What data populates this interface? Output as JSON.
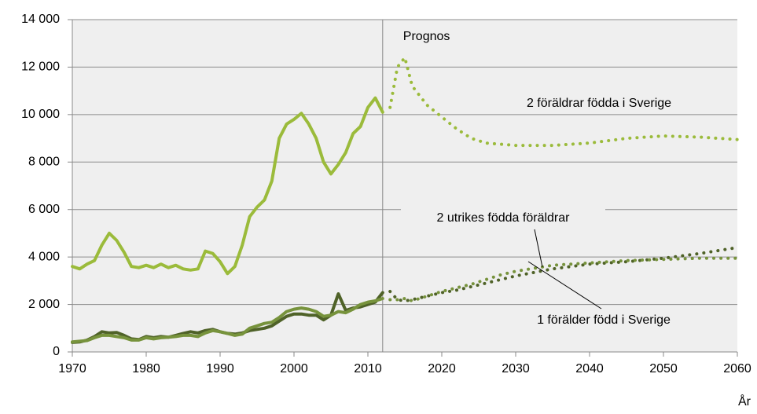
{
  "chart_data": {
    "type": "line",
    "x": [
      1970,
      1971,
      1972,
      1973,
      1974,
      1975,
      1976,
      1977,
      1978,
      1979,
      1980,
      1981,
      1982,
      1983,
      1984,
      1985,
      1986,
      1987,
      1988,
      1989,
      1990,
      1991,
      1992,
      1993,
      1994,
      1995,
      1996,
      1997,
      1998,
      1999,
      2000,
      2001,
      2002,
      2003,
      2004,
      2005,
      2006,
      2007,
      2008,
      2009,
      2010,
      2011,
      2012,
      2013,
      2014,
      2015,
      2016,
      2018,
      2020,
      2022,
      2024,
      2026,
      2028,
      2030,
      2035,
      2040,
      2045,
      2050,
      2055,
      2060
    ],
    "series": [
      {
        "name": "2 föräldrar födda i Sverige",
        "color": "#9bbb3b",
        "values": [
          3600,
          3500,
          3700,
          3850,
          4500,
          5000,
          4700,
          4200,
          3600,
          3550,
          3650,
          3550,
          3700,
          3550,
          3650,
          3500,
          3450,
          3500,
          4250,
          4150,
          3800,
          3300,
          3600,
          4500,
          5700,
          6100,
          6400,
          7200,
          9000,
          9600,
          9800,
          10050,
          9600,
          9000,
          8000,
          7500,
          7900,
          8400,
          9200,
          9500,
          10300,
          10700,
          10100,
          10300,
          12000,
          12400,
          11200,
          10400,
          9900,
          9400,
          9000,
          8800,
          8750,
          8700,
          8700,
          8800,
          9000,
          9100,
          9050,
          8950
        ]
      },
      {
        "name": "2 utrikes födda föräldrar",
        "color": "#4f6228",
        "values": [
          400,
          420,
          500,
          650,
          850,
          800,
          820,
          700,
          550,
          520,
          650,
          600,
          650,
          620,
          700,
          780,
          850,
          800,
          900,
          950,
          850,
          780,
          750,
          800,
          900,
          950,
          1000,
          1100,
          1300,
          1500,
          1600,
          1600,
          1550,
          1550,
          1350,
          1550,
          2450,
          1750,
          1850,
          1900,
          2000,
          2100,
          2500,
          2550,
          2200,
          2150,
          2200,
          2350,
          2500,
          2600,
          2750,
          2900,
          3050,
          3200,
          3500,
          3700,
          3800,
          3950,
          4150,
          4400
        ]
      },
      {
        "name": "1 förälder född i Sverige",
        "color": "#77933c",
        "values": [
          420,
          450,
          480,
          600,
          700,
          700,
          650,
          600,
          500,
          500,
          600,
          550,
          600,
          620,
          650,
          700,
          700,
          650,
          800,
          900,
          850,
          780,
          700,
          750,
          1000,
          1100,
          1200,
          1250,
          1450,
          1700,
          1800,
          1850,
          1800,
          1700,
          1500,
          1550,
          1700,
          1650,
          1800,
          2000,
          2100,
          2150,
          2250,
          2200,
          2200,
          2250,
          2150,
          2350,
          2550,
          2700,
          2850,
          3050,
          3250,
          3400,
          3650,
          3750,
          3850,
          3900,
          3950,
          3950
        ]
      }
    ],
    "prognos": {
      "label": "Prognos",
      "x": 2012
    },
    "xlabel": "År",
    "xlim": [
      1970,
      2060
    ],
    "xticks": [
      1970,
      1980,
      1990,
      2000,
      2010,
      2020,
      2030,
      2040,
      2050,
      2060
    ],
    "ylim": [
      0,
      14000
    ],
    "yticks": [
      0,
      {
        "value": 2000,
        "label": "2 000"
      },
      {
        "value": 4000,
        "label": "4 000"
      },
      {
        "value": 6000,
        "label": "6 000"
      },
      {
        "value": 8000,
        "label": "8 000"
      },
      {
        "value": 10000,
        "label": "10 000"
      },
      {
        "value": 12000,
        "label": "12 000"
      },
      {
        "value": 14000,
        "label": "14 000"
      }
    ],
    "grid": true
  }
}
